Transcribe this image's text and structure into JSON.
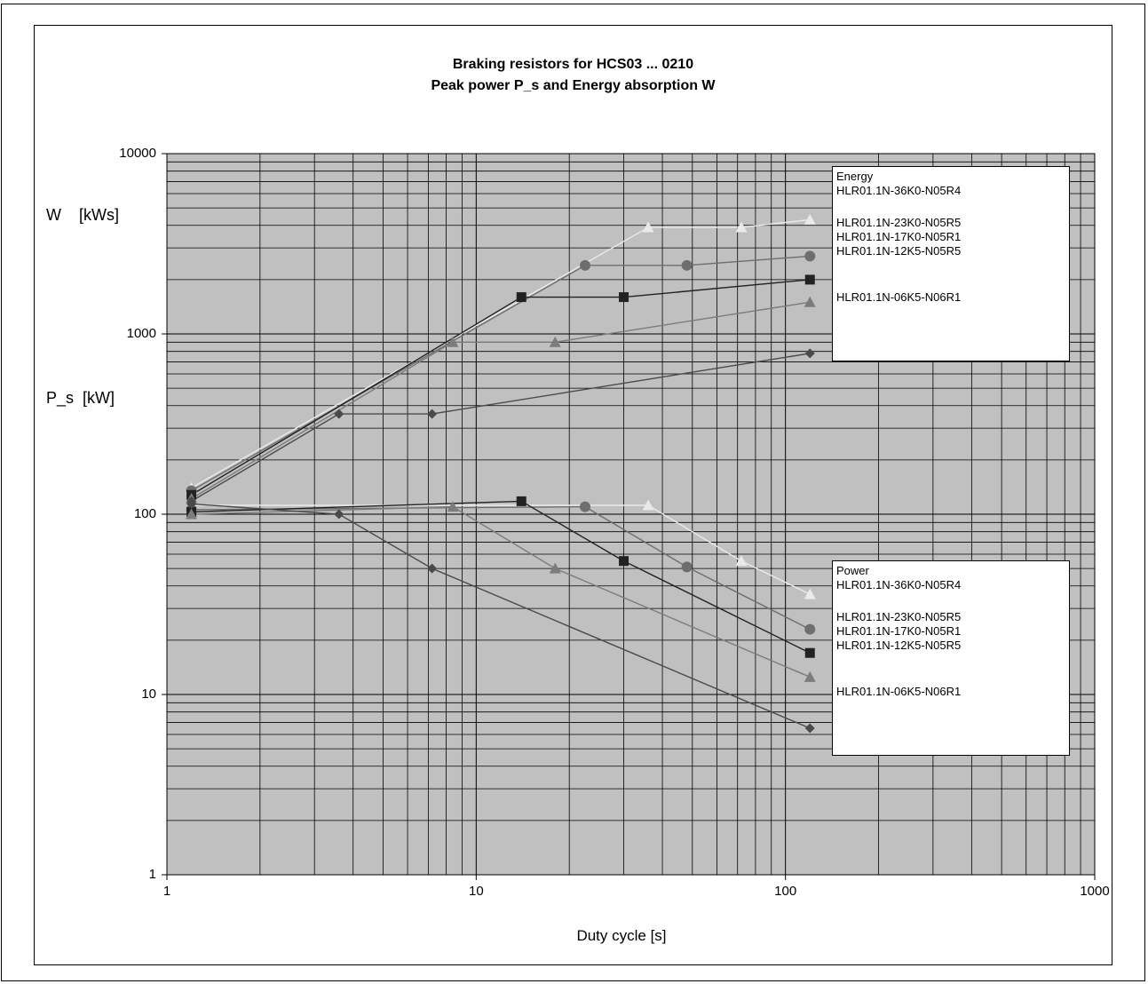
{
  "chart_data": {
    "type": "line",
    "title": "Braking resistors for HCS03 ... 0210",
    "subtitle": "Peak power P_s and Energy absorption W",
    "xlabel": "Duty cycle [s]",
    "ylabel_energy": "W    [kWs]",
    "ylabel_power": "P_s  [kW]",
    "x_scale": "log",
    "y_scale": "log",
    "xlim": [
      1,
      1000
    ],
    "ylim": [
      1,
      10000
    ],
    "x_ticks": [
      "1",
      "10",
      "100",
      "1000"
    ],
    "y_ticks": [
      "1",
      "10",
      "100",
      "1000",
      "10000"
    ],
    "grid": true,
    "legend_energy": {
      "title": "Energy",
      "entries": [
        "HLR01.1N-36K0-N05R4",
        "HLR01.1N-23K0-N05R5",
        "HLR01.1N-17K0-N05R1",
        "HLR01.1N-12K5-N05R5",
        "HLR01.1N-06K5-N06R1"
      ],
      "placement": "top-right"
    },
    "legend_power": {
      "title": "Power",
      "entries": [
        "HLR01.1N-36K0-N05R4",
        "HLR01.1N-23K0-N05R5",
        "HLR01.1N-17K0-N05R1",
        "HLR01.1N-12K5-N05R5",
        "HLR01.1N-06K5-N06R1"
      ],
      "placement": "right"
    },
    "series": [
      {
        "group": "energy",
        "name": "HLR01.1N-36K0-N05R4",
        "marker": "triangle",
        "color": "#eaeaea",
        "x": [
          1.2,
          36,
          72,
          120
        ],
        "y": [
          140,
          3900,
          3900,
          4300
        ]
      },
      {
        "group": "energy",
        "name": "HLR01.1N-23K0-N05R5",
        "marker": "circle",
        "color": "#6e6e6e",
        "x": [
          1.2,
          22.5,
          48,
          120
        ],
        "y": [
          135,
          2400,
          2400,
          2700
        ]
      },
      {
        "group": "energy",
        "name": "HLR01.1N-17K0-N05R1",
        "marker": "square",
        "color": "#222222",
        "x": [
          1.2,
          14,
          30,
          120
        ],
        "y": [
          128,
          1600,
          1600,
          2000
        ]
      },
      {
        "group": "energy",
        "name": "HLR01.1N-12K5-N05R5",
        "marker": "triangle",
        "color": "#7c7c7c",
        "x": [
          1.2,
          8.4,
          18,
          120
        ],
        "y": [
          122,
          900,
          900,
          1500
        ]
      },
      {
        "group": "energy",
        "name": "HLR01.1N-06K5-N06R1",
        "marker": "diamond",
        "color": "#4a4a4a",
        "x": [
          1.2,
          3.6,
          7.2,
          120
        ],
        "y": [
          118,
          360,
          360,
          780
        ]
      },
      {
        "group": "power",
        "name": "HLR01.1N-36K0-N05R4",
        "marker": "triangle",
        "color": "#eaeaea",
        "x": [
          1.2,
          36,
          72,
          120
        ],
        "y": [
          112,
          112,
          55,
          36
        ]
      },
      {
        "group": "power",
        "name": "HLR01.1N-23K0-N05R5",
        "marker": "circle",
        "color": "#6e6e6e",
        "x": [
          1.2,
          22.5,
          48,
          120
        ],
        "y": [
          106,
          110,
          51,
          23
        ]
      },
      {
        "group": "power",
        "name": "HLR01.1N-17K0-N05R1",
        "marker": "square",
        "color": "#222222",
        "x": [
          1.2,
          14,
          30,
          120
        ],
        "y": [
          103,
          118,
          55,
          17
        ]
      },
      {
        "group": "power",
        "name": "HLR01.1N-12K5-N05R5",
        "marker": "triangle",
        "color": "#7c7c7c",
        "x": [
          1.2,
          8.4,
          18,
          120
        ],
        "y": [
          100,
          110,
          50,
          12.5
        ]
      },
      {
        "group": "power",
        "name": "HLR01.1N-06K5-N06R1",
        "marker": "diamond",
        "color": "#4a4a4a",
        "x": [
          1.2,
          3.6,
          7.2,
          120
        ],
        "y": [
          114,
          100,
          50,
          6.5
        ]
      }
    ]
  }
}
